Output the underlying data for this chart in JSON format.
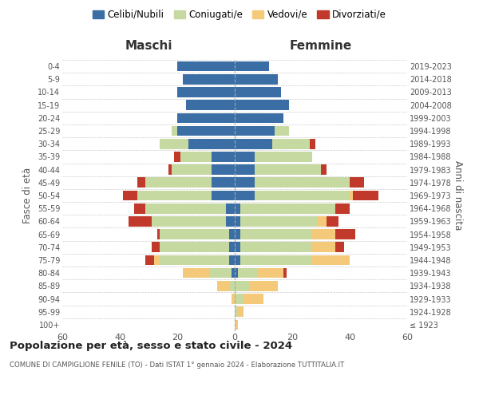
{
  "age_groups": [
    "100+",
    "95-99",
    "90-94",
    "85-89",
    "80-84",
    "75-79",
    "70-74",
    "65-69",
    "60-64",
    "55-59",
    "50-54",
    "45-49",
    "40-44",
    "35-39",
    "30-34",
    "25-29",
    "20-24",
    "15-19",
    "10-14",
    "5-9",
    "0-4"
  ],
  "birth_years": [
    "≤ 1923",
    "1924-1928",
    "1929-1933",
    "1934-1938",
    "1939-1943",
    "1944-1948",
    "1949-1953",
    "1954-1958",
    "1959-1963",
    "1964-1968",
    "1969-1973",
    "1974-1978",
    "1979-1983",
    "1984-1988",
    "1989-1993",
    "1994-1998",
    "1999-2003",
    "2004-2008",
    "2009-2013",
    "2014-2018",
    "2019-2023"
  ],
  "colors": {
    "celibi": "#3a6ea5",
    "coniugati": "#c5d9a0",
    "vedovi": "#f5c97a",
    "divorziati": "#c0392b"
  },
  "maschi": {
    "celibi": [
      0,
      0,
      0,
      0,
      1,
      2,
      2,
      2,
      3,
      3,
      8,
      8,
      8,
      8,
      16,
      20,
      20,
      17,
      20,
      18,
      20
    ],
    "coniugati": [
      0,
      0,
      0,
      2,
      8,
      24,
      24,
      24,
      26,
      28,
      26,
      23,
      14,
      11,
      10,
      2,
      0,
      0,
      0,
      0,
      0
    ],
    "vedovi": [
      0,
      0,
      1,
      4,
      9,
      2,
      0,
      0,
      0,
      0,
      0,
      0,
      0,
      0,
      0,
      0,
      0,
      0,
      0,
      0,
      0
    ],
    "divorziati": [
      0,
      0,
      0,
      0,
      0,
      3,
      3,
      1,
      8,
      4,
      5,
      3,
      1,
      2,
      0,
      0,
      0,
      0,
      0,
      0,
      0
    ]
  },
  "femmine": {
    "celibi": [
      0,
      0,
      0,
      0,
      1,
      2,
      2,
      2,
      2,
      2,
      7,
      7,
      7,
      7,
      13,
      14,
      17,
      19,
      16,
      15,
      12
    ],
    "coniugati": [
      0,
      1,
      3,
      5,
      7,
      25,
      25,
      25,
      27,
      33,
      33,
      33,
      23,
      20,
      13,
      5,
      0,
      0,
      0,
      0,
      0
    ],
    "vedovi": [
      1,
      2,
      7,
      10,
      9,
      13,
      8,
      8,
      3,
      0,
      1,
      0,
      0,
      0,
      0,
      0,
      0,
      0,
      0,
      0,
      0
    ],
    "divorziati": [
      0,
      0,
      0,
      0,
      1,
      0,
      3,
      7,
      4,
      5,
      9,
      5,
      2,
      0,
      2,
      0,
      0,
      0,
      0,
      0,
      0
    ]
  },
  "title_main": "Popolazione per età, sesso e stato civile - 2024",
  "title_sub": "COMUNE DI CAMPIGLIONE FENILE (TO) - Dati ISTAT 1° gennaio 2024 - Elaborazione TUTTITALIA.IT",
  "xlabel_left": "Maschi",
  "xlabel_right": "Femmine",
  "ylabel": "Fasce di età",
  "ylabel_right": "Anni di nascita",
  "legend_labels": [
    "Celibi/Nubili",
    "Coniugati/e",
    "Vedovi/e",
    "Divorziati/e"
  ],
  "xlim": 60,
  "background_color": "#ffffff",
  "grid_color": "#cccccc"
}
